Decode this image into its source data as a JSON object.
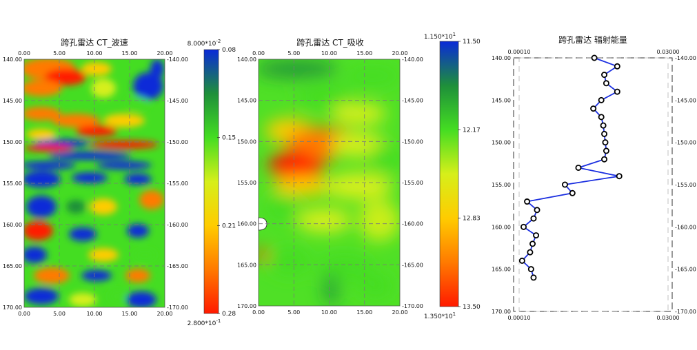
{
  "chart_data": [
    {
      "type": "heatmap",
      "title": "跨孔雷达   CT_波速",
      "x_ticks": [
        "0.00",
        "5.00",
        "10.00",
        "15.00",
        "20.00"
      ],
      "y_ticks_left": [
        "140.00",
        "145.00",
        "150.00",
        "155.00",
        "160.00",
        "165.00",
        "170.00"
      ],
      "y_ticks_right": [
        "-140.00",
        "-145.00",
        "-150.00",
        "-155.00",
        "-160.00",
        "-165.00",
        "-170.00"
      ],
      "xlim": [
        0,
        20
      ],
      "ylim": [
        140,
        170
      ],
      "colorbar": {
        "top_label": "8.000*10",
        "top_exp": "-2",
        "bottom_label": "2.800*10",
        "bottom_exp": "-1",
        "ticks": [
          "0.08",
          "0.15",
          "0.21",
          "0.28"
        ],
        "range": [
          0.08,
          0.28
        ],
        "colors_top_to_bottom": [
          "#0a2ad8",
          "#1e8f3a",
          "#44dd22",
          "#d6ef1a",
          "#ffcc00",
          "#ff7a00",
          "#ff1a00"
        ]
      }
    },
    {
      "type": "heatmap",
      "title": "跨孔雷达   CT_吸收",
      "x_ticks": [
        "0.00",
        "5.00",
        "10.00",
        "15.00",
        "20.00"
      ],
      "y_ticks_left": [
        "140.00",
        "145.00",
        "150.00",
        "155.00",
        "160.00",
        "165.00",
        "170.00"
      ],
      "y_ticks_right": [
        "-140.00",
        "-145.00",
        "-150.00",
        "-155.00",
        "-160.00",
        "-165.00",
        "-170.00"
      ],
      "xlim": [
        0,
        20
      ],
      "ylim": [
        140,
        170
      ],
      "colorbar": {
        "top_label": "1.150*10",
        "top_exp": "1",
        "bottom_label": "1.350*10",
        "bottom_exp": "1",
        "ticks": [
          "11.50",
          "12.17",
          "12.83",
          "13.50"
        ],
        "range": [
          11.5,
          13.5
        ],
        "colors_top_to_bottom": [
          "#0a2ad8",
          "#1e8f3a",
          "#44dd22",
          "#d6ef1a",
          "#ffcc00",
          "#ff7a00",
          "#ff1a00"
        ]
      }
    },
    {
      "type": "line",
      "title": "跨孔雷达   辐射能量",
      "x_top_ticks": [
        "0.00010",
        "0.03000"
      ],
      "x_bottom_ticks": [
        "0.00010",
        "0.03000"
      ],
      "xlim": [
        0.0001,
        0.03
      ],
      "y_ticks_left": [
        "140.00",
        "145.00",
        "150.00",
        "155.00",
        "160.00",
        "165.00",
        "170.00"
      ],
      "y_ticks_right": [
        "-140.00",
        "-145.00",
        "-150.00",
        "-155.00",
        "-160.00",
        "-165.00",
        "-170.00"
      ],
      "ylim": [
        140,
        170
      ],
      "line_color": "#1a2ee0",
      "points": [
        {
          "x": 0.0152,
          "y": 140
        },
        {
          "x": 0.0198,
          "y": 141
        },
        {
          "x": 0.0172,
          "y": 142
        },
        {
          "x": 0.0176,
          "y": 143
        },
        {
          "x": 0.0198,
          "y": 144
        },
        {
          "x": 0.0166,
          "y": 145
        },
        {
          "x": 0.015,
          "y": 146
        },
        {
          "x": 0.0166,
          "y": 147
        },
        {
          "x": 0.017,
          "y": 148
        },
        {
          "x": 0.0172,
          "y": 149
        },
        {
          "x": 0.0174,
          "y": 150
        },
        {
          "x": 0.0176,
          "y": 151
        },
        {
          "x": 0.0172,
          "y": 152
        },
        {
          "x": 0.012,
          "y": 153
        },
        {
          "x": 0.0202,
          "y": 154
        },
        {
          "x": 0.0093,
          "y": 155
        },
        {
          "x": 0.0108,
          "y": 156
        },
        {
          "x": 0.0017,
          "y": 157
        },
        {
          "x": 0.0037,
          "y": 158
        },
        {
          "x": 0.003,
          "y": 159
        },
        {
          "x": 0.001,
          "y": 160
        },
        {
          "x": 0.0035,
          "y": 161
        },
        {
          "x": 0.0028,
          "y": 162
        },
        {
          "x": 0.0023,
          "y": 163
        },
        {
          "x": 0.0007,
          "y": 164
        },
        {
          "x": 0.0025,
          "y": 165
        },
        {
          "x": 0.003,
          "y": 166
        }
      ]
    }
  ]
}
